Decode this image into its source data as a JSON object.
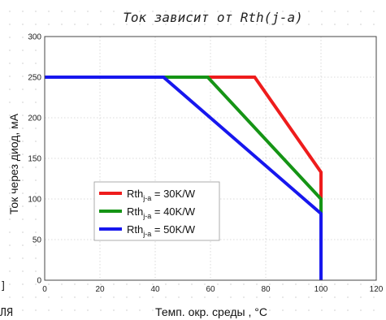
{
  "page": {
    "left_fragment": "ЛЯ",
    "left_bracket": "]"
  },
  "chart_data": {
    "type": "line",
    "title": "Ток зависит от Rth(j-a)",
    "xlabel": "Темп. окр. среды , °C",
    "ylabel": "Ток через диод, мА",
    "xlim": [
      0,
      120
    ],
    "ylim": [
      0,
      300
    ],
    "xticks": [
      0,
      20,
      40,
      60,
      80,
      100,
      120
    ],
    "yticks": [
      0,
      50,
      100,
      150,
      200,
      250,
      300
    ],
    "grid": true,
    "legend_position": "center-left",
    "series": [
      {
        "name": "Rthj-a = 30K/W",
        "name_main": "Rth",
        "name_sub": "j-a",
        "name_rest": " = 30K/W",
        "color": "#ee1c1c",
        "points": [
          [
            0,
            250
          ],
          [
            76,
            250
          ],
          [
            100,
            133
          ],
          [
            100,
            0
          ]
        ]
      },
      {
        "name": "Rthj-a = 40K/W",
        "name_main": "Rth",
        "name_sub": "j-a",
        "name_rest": " = 40K/W",
        "color": "#159415",
        "points": [
          [
            0,
            250
          ],
          [
            59,
            250
          ],
          [
            100,
            100
          ],
          [
            100,
            0
          ]
        ]
      },
      {
        "name": "Rthj-a = 50K/W",
        "name_main": "Rth",
        "name_sub": "j-a",
        "name_rest": " = 50K/W",
        "color": "#1717ee",
        "points": [
          [
            0,
            250
          ],
          [
            43,
            250
          ],
          [
            100,
            82
          ],
          [
            100,
            0
          ]
        ]
      }
    ]
  }
}
